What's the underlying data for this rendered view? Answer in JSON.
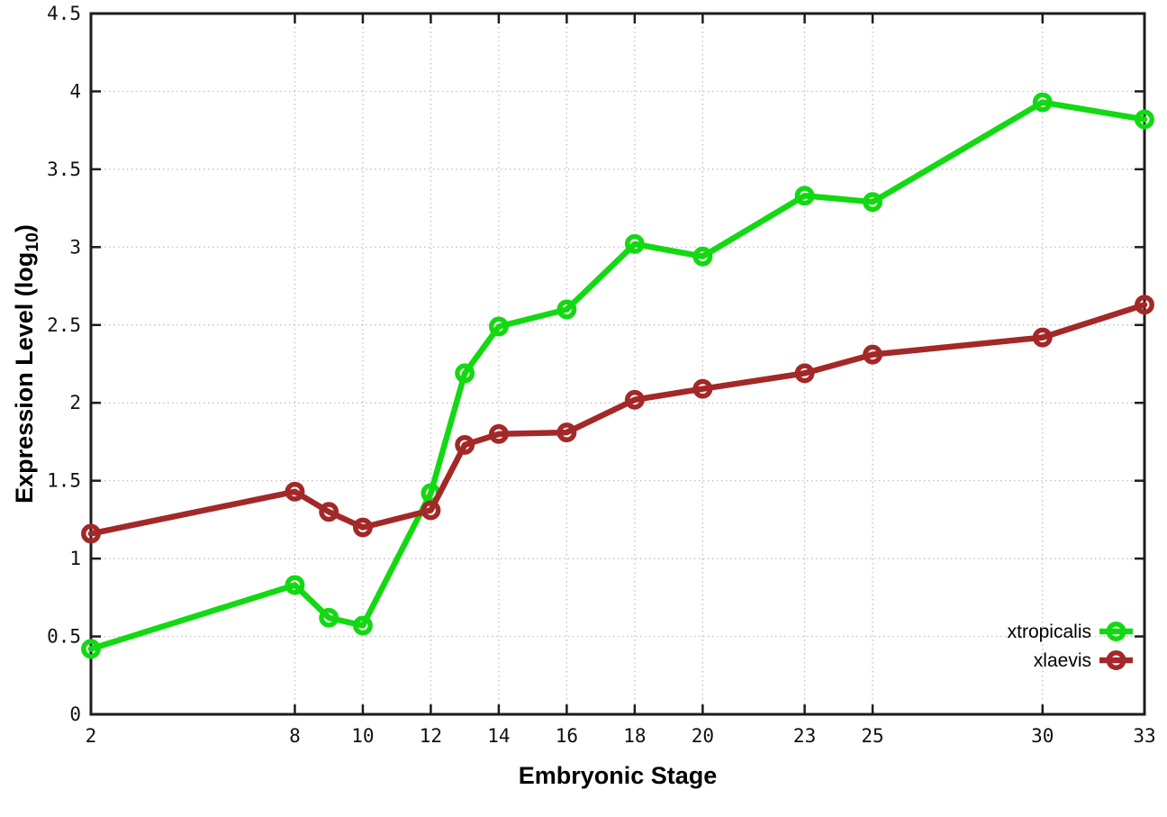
{
  "chart_data": {
    "type": "line",
    "title": "",
    "xlabel": "Embryonic Stage",
    "ylabel": "Expression Level (log10)",
    "ylabel_prefix": "Expression Level (log",
    "ylabel_sub": "10",
    "ylabel_suffix": ")",
    "x": [
      2,
      8,
      9,
      10,
      12,
      13,
      14,
      16,
      18,
      20,
      23,
      25,
      30,
      33
    ],
    "xtick_labels": [
      "2",
      "8",
      "10",
      "12",
      "14",
      "16",
      "18",
      "20",
      "23",
      "25",
      "30",
      "33"
    ],
    "xtick_values": [
      2,
      8,
      10,
      12,
      14,
      16,
      18,
      20,
      23,
      25,
      30,
      33
    ],
    "ytick_labels": [
      "0",
      "0.5",
      "1",
      "1.5",
      "2",
      "2.5",
      "3",
      "3.5",
      "4",
      "4.5"
    ],
    "ytick_values": [
      0,
      0.5,
      1,
      1.5,
      2,
      2.5,
      3,
      3.5,
      4,
      4.5
    ],
    "xlim": [
      2,
      33
    ],
    "ylim": [
      0,
      4.5
    ],
    "grid": true,
    "legend_position": "inside-bottom-right",
    "series": [
      {
        "name": "xtropicalis",
        "color": "#12d912",
        "marker": "open-circle",
        "values": [
          0.42,
          0.83,
          0.62,
          0.57,
          1.42,
          2.19,
          2.49,
          2.6,
          3.02,
          2.94,
          3.33,
          3.29,
          3.93,
          3.82
        ]
      },
      {
        "name": "xlaevis",
        "color": "#a32828",
        "marker": "open-circle",
        "values": [
          1.16,
          1.43,
          1.3,
          1.2,
          1.31,
          1.73,
          1.8,
          1.81,
          2.02,
          2.09,
          2.19,
          2.31,
          2.42,
          2.63
        ]
      }
    ]
  },
  "colors": {
    "background": "#ffffff",
    "axis": "#1c1c1c",
    "grid": "#bbbbbb",
    "tick_text": "#111111",
    "xtropicalis": "#12d912",
    "xlaevis": "#a32828"
  }
}
